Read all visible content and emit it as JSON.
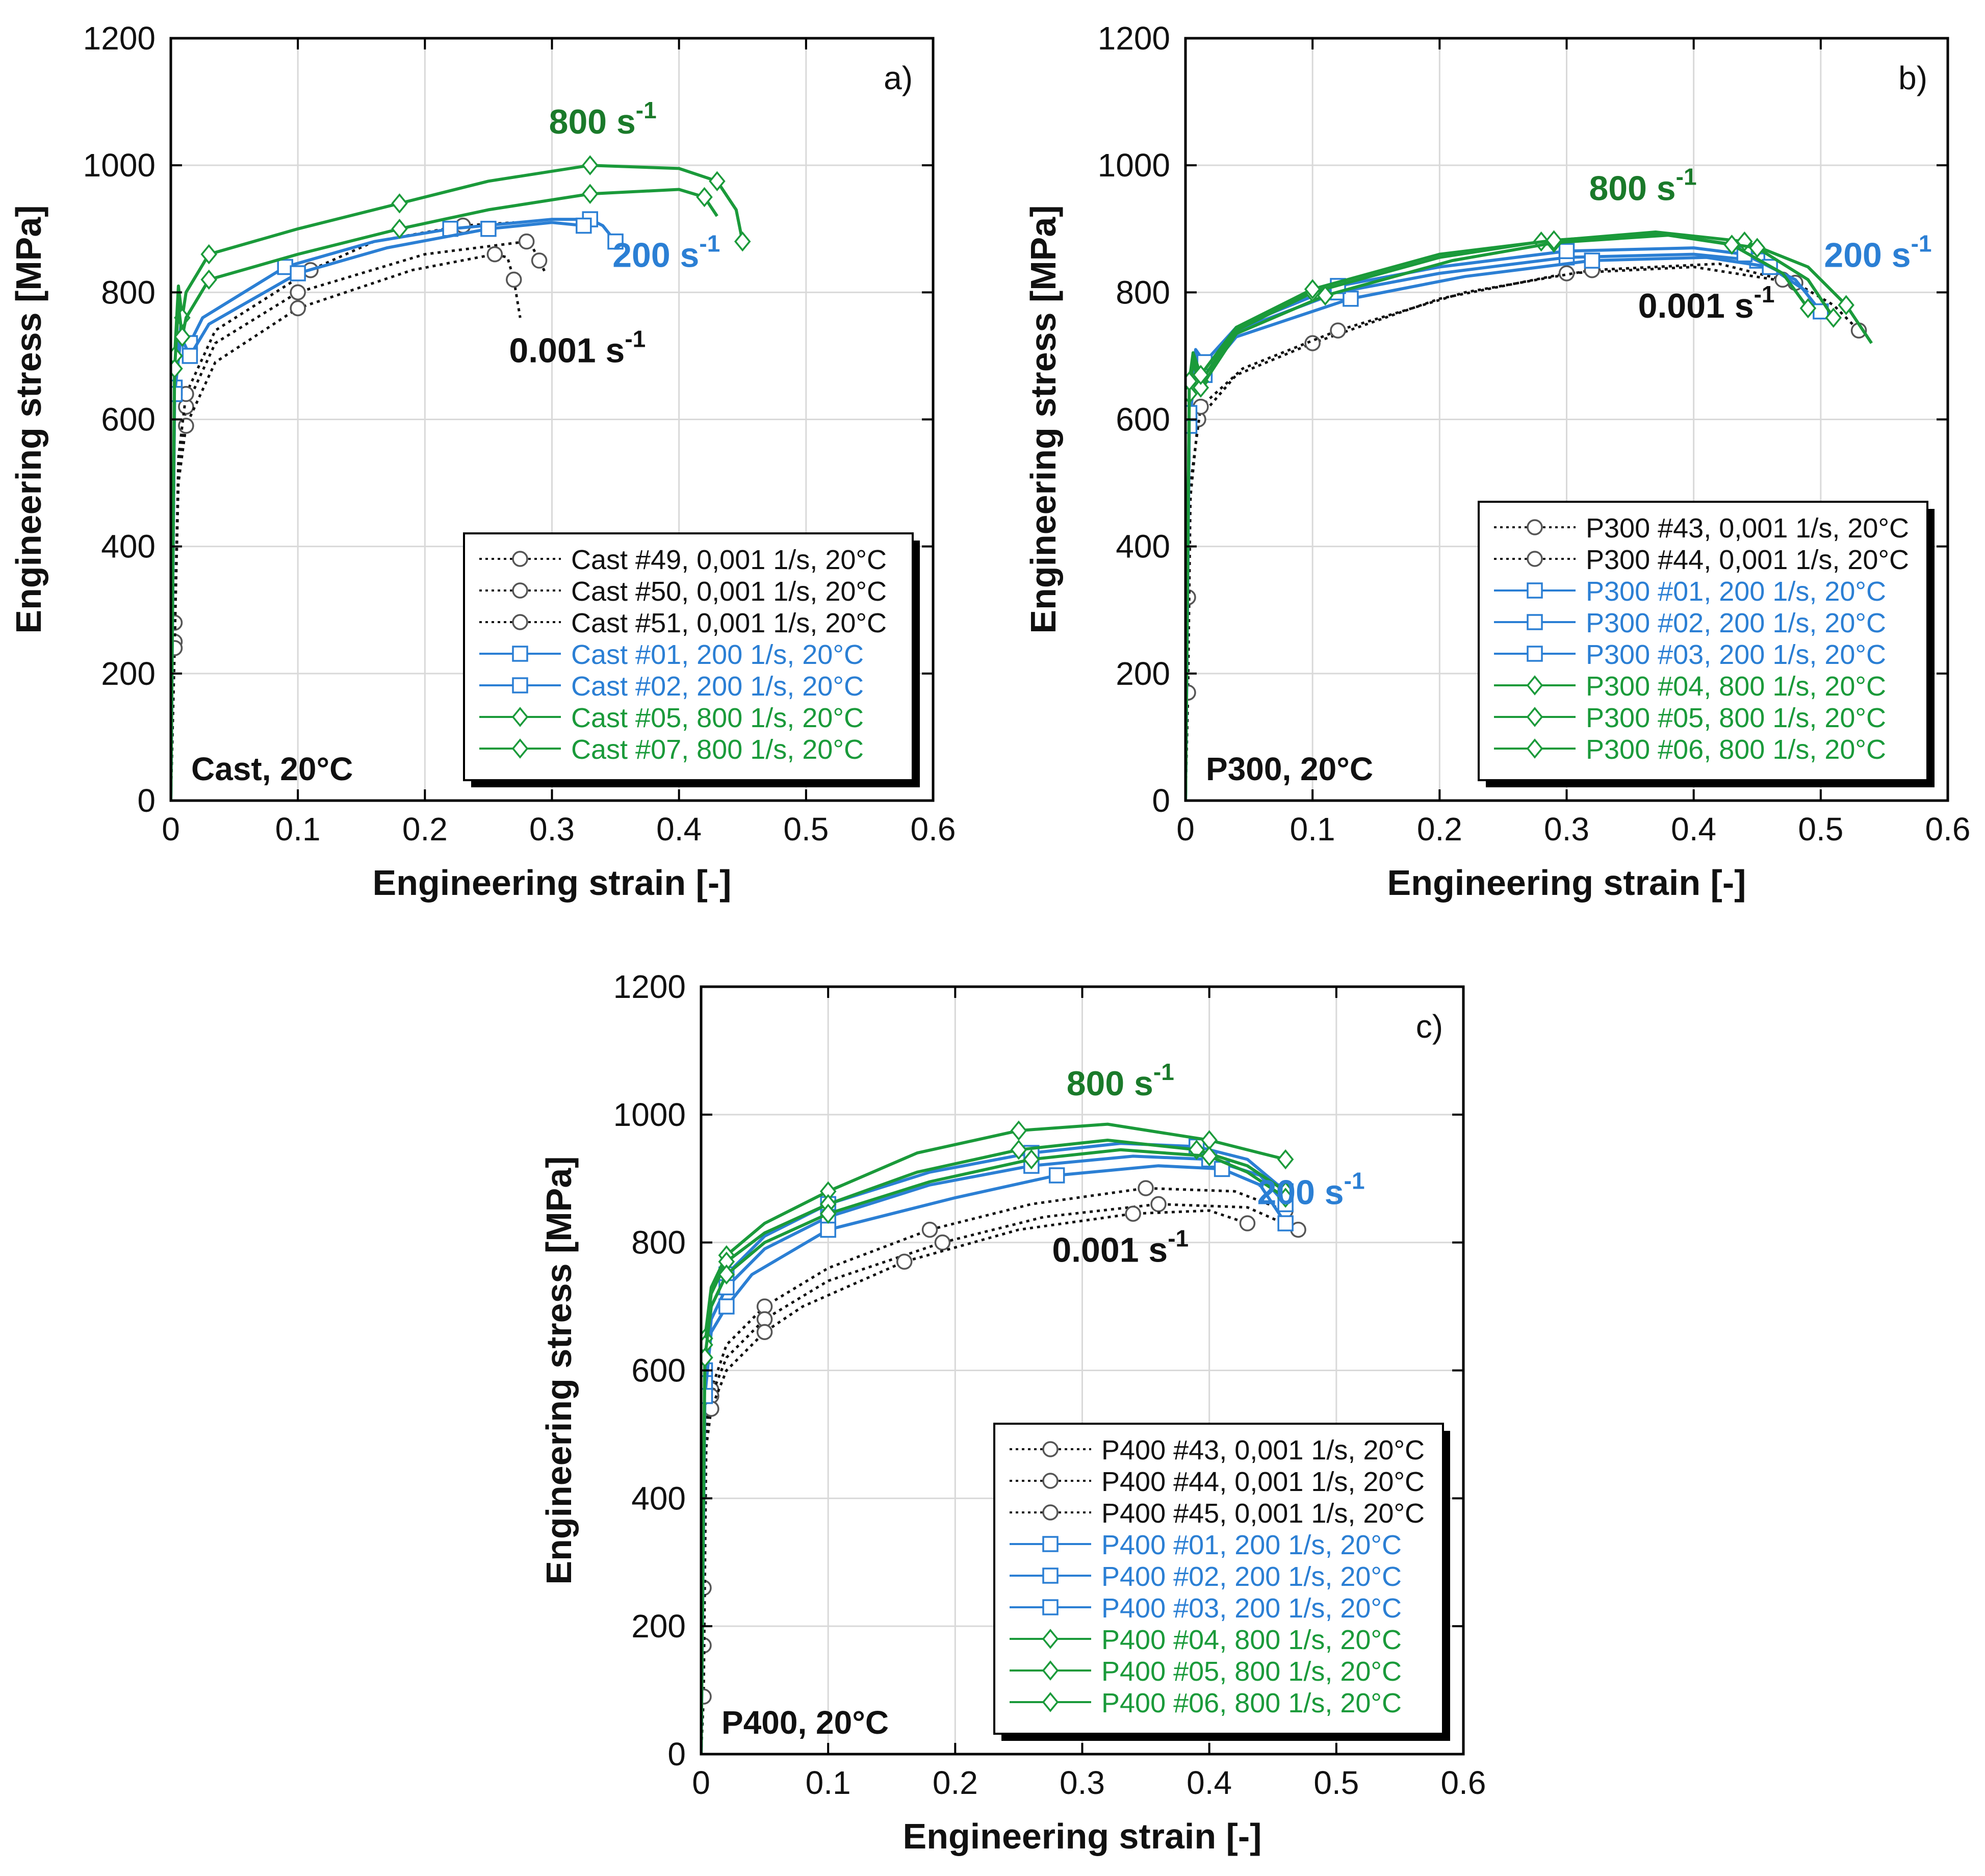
{
  "chart_data": [
    {
      "type": "line",
      "panel_label": "a)",
      "xlabel": "Engineering strain [-]",
      "ylabel": "Engineering stress [MPa]",
      "xlim": [
        0,
        0.6
      ],
      "ylim": [
        0,
        1200
      ],
      "xticks": [
        0,
        0.1,
        0.2,
        0.3,
        0.4,
        0.5,
        0.6
      ],
      "yticks": [
        0,
        200,
        400,
        600,
        800,
        1000,
        1200
      ],
      "xtick_labels": [
        "0",
        "0.1",
        "0.2",
        "0.3",
        "0.4",
        "0.5",
        "0.6"
      ],
      "ytick_labels": [
        "0",
        "200",
        "400",
        "600",
        "800",
        "1000",
        "1200"
      ],
      "grid": true,
      "condition_label": "Cast, 20°C",
      "legend_position": "bottom-right",
      "annotations": [
        {
          "text": "800 s",
          "sup": "-1",
          "color": "#1a7a2a",
          "x": 0.34,
          "y": 1050
        },
        {
          "text": "200 s",
          "sup": "-1",
          "color": "#2b7fd4",
          "x": 0.39,
          "y": 840
        },
        {
          "text": "0.001 s",
          "sup": "-1",
          "color": "#111111",
          "x": 0.32,
          "y": 690
        }
      ],
      "series": [
        {
          "name": "Cast #49, 0,001 1/s, 20°C",
          "color": "#111111",
          "dash": "dot",
          "marker": "circle",
          "x": [
            0,
            0.003,
            0.006,
            0.012,
            0.035,
            0.1,
            0.2,
            0.28,
            0.285,
            0.29,
            0.295
          ],
          "y": [
            0,
            280,
            520,
            620,
            720,
            800,
            860,
            880,
            870,
            850,
            830
          ]
        },
        {
          "name": "Cast #50, 0,001 1/s, 20°C",
          "color": "#111111",
          "dash": "dot",
          "marker": "circle",
          "x": [
            0,
            0.003,
            0.006,
            0.012,
            0.035,
            0.1,
            0.19,
            0.255,
            0.265,
            0.27,
            0.275
          ],
          "y": [
            0,
            250,
            500,
            590,
            690,
            775,
            835,
            860,
            855,
            820,
            760
          ]
        },
        {
          "name": "Cast #51, 0,001 1/s, 20°C",
          "color": "#111111",
          "dash": "dot",
          "marker": "circle",
          "x": [
            0,
            0.003,
            0.006,
            0.012,
            0.035,
            0.11,
            0.16,
            0.23,
            0.27
          ],
          "y": [
            0,
            240,
            540,
            640,
            740,
            835,
            880,
            905,
            910
          ]
        },
        {
          "name": "Cast #01, 200 1/s, 20°C",
          "color": "#2b7fd4",
          "dash": "solid",
          "marker": "square",
          "x": [
            0,
            0.003,
            0.008,
            0.015,
            0.025,
            0.09,
            0.16,
            0.22,
            0.3,
            0.33,
            0.34,
            0.35
          ],
          "y": [
            0,
            650,
            750,
            720,
            760,
            840,
            880,
            900,
            915,
            915,
            905,
            880
          ]
        },
        {
          "name": "Cast #02, 200 1/s, 20°C",
          "color": "#2b7fd4",
          "dash": "solid",
          "marker": "square",
          "x": [
            0,
            0.003,
            0.008,
            0.015,
            0.03,
            0.1,
            0.17,
            0.25,
            0.3,
            0.325
          ],
          "y": [
            0,
            640,
            730,
            700,
            750,
            830,
            870,
            900,
            910,
            905
          ]
        },
        {
          "name": "Cast #05, 800 1/s, 20°C",
          "color": "#1a9a3a",
          "dash": "solid",
          "marker": "diamond",
          "x": [
            0,
            0.003,
            0.006,
            0.009,
            0.012,
            0.03,
            0.1,
            0.18,
            0.25,
            0.33,
            0.4,
            0.43,
            0.445,
            0.45
          ],
          "y": [
            0,
            700,
            810,
            760,
            800,
            860,
            900,
            940,
            975,
            1000,
            995,
            975,
            930,
            880
          ]
        },
        {
          "name": "Cast #07, 800 1/s, 20°C",
          "color": "#1a9a3a",
          "dash": "solid",
          "marker": "diamond",
          "x": [
            0,
            0.003,
            0.006,
            0.009,
            0.012,
            0.03,
            0.1,
            0.18,
            0.25,
            0.33,
            0.4,
            0.42,
            0.43
          ],
          "y": [
            0,
            680,
            780,
            730,
            760,
            820,
            860,
            900,
            930,
            955,
            962,
            950,
            920
          ]
        }
      ]
    },
    {
      "type": "line",
      "panel_label": "b)",
      "xlabel": "Engineering strain [-]",
      "ylabel": "Engineering stress [MPa]",
      "xlim": [
        0,
        0.6
      ],
      "ylim": [
        0,
        1200
      ],
      "xticks": [
        0,
        0.1,
        0.2,
        0.3,
        0.4,
        0.5,
        0.6
      ],
      "yticks": [
        0,
        200,
        400,
        600,
        800,
        1000,
        1200
      ],
      "xtick_labels": [
        "0",
        "0.1",
        "0.2",
        "0.3",
        "0.4",
        "0.5",
        "0.6"
      ],
      "ytick_labels": [
        "0",
        "200",
        "400",
        "600",
        "800",
        "1000",
        "1200"
      ],
      "grid": true,
      "condition_label": "P300, 20°C",
      "legend_position": "bottom-right",
      "annotations": [
        {
          "text": "800 s",
          "sup": "-1",
          "color": "#1a7a2a",
          "x": 0.36,
          "y": 945
        },
        {
          "text": "200 s",
          "sup": "-1",
          "color": "#2b7fd4",
          "x": 0.545,
          "y": 840
        },
        {
          "text": "0.001 s",
          "sup": "-1",
          "color": "#111111",
          "x": 0.41,
          "y": 760
        }
      ],
      "series": [
        {
          "name": "P300 #43, 0,001 1/s, 20°C",
          "color": "#111111",
          "dash": "dot",
          "marker": "circle",
          "x": [
            0,
            0.002,
            0.004,
            0.01,
            0.04,
            0.1,
            0.2,
            0.3,
            0.4,
            0.48,
            0.51,
            0.53
          ],
          "y": [
            0,
            320,
            480,
            600,
            670,
            720,
            790,
            830,
            840,
            815,
            780,
            740
          ]
        },
        {
          "name": "P300 #44, 0,001 1/s, 20°C",
          "color": "#111111",
          "dash": "dot",
          "marker": "circle",
          "x": [
            0,
            0.002,
            0.004,
            0.012,
            0.045,
            0.12,
            0.22,
            0.32,
            0.42,
            0.47
          ],
          "y": [
            0,
            170,
            500,
            620,
            680,
            740,
            800,
            835,
            845,
            820
          ]
        },
        {
          "name": "P300 #01, 200 1/s, 20°C",
          "color": "#2b7fd4",
          "dash": "solid",
          "marker": "square",
          "x": [
            0,
            0.003,
            0.008,
            0.015,
            0.04,
            0.12,
            0.2,
            0.3,
            0.4,
            0.45,
            0.48,
            0.5
          ],
          "y": [
            0,
            600,
            700,
            680,
            740,
            800,
            830,
            855,
            860,
            850,
            820,
            770
          ]
        },
        {
          "name": "P300 #02, 200 1/s, 20°C",
          "color": "#2b7fd4",
          "dash": "solid",
          "marker": "square",
          "x": [
            0,
            0.003,
            0.008,
            0.015,
            0.04,
            0.13,
            0.22,
            0.32,
            0.41,
            0.46,
            0.49
          ],
          "y": [
            0,
            590,
            690,
            670,
            730,
            790,
            825,
            850,
            855,
            840,
            800
          ]
        },
        {
          "name": "P300 #03, 200 1/s, 20°C",
          "color": "#2b7fd4",
          "dash": "solid",
          "marker": "square",
          "x": [
            0,
            0.003,
            0.008,
            0.015,
            0.04,
            0.12,
            0.2,
            0.3,
            0.4,
            0.44,
            0.47
          ],
          "y": [
            0,
            610,
            710,
            690,
            745,
            810,
            840,
            865,
            870,
            860,
            830
          ]
        },
        {
          "name": "P300 #04, 800 1/s, 20°C",
          "color": "#1a9a3a",
          "dash": "solid",
          "marker": "diamond",
          "x": [
            0,
            0.003,
            0.006,
            0.012,
            0.04,
            0.1,
            0.2,
            0.28,
            0.37,
            0.44,
            0.49,
            0.52,
            0.54
          ],
          "y": [
            0,
            650,
            700,
            660,
            740,
            800,
            855,
            880,
            895,
            880,
            840,
            780,
            720
          ]
        },
        {
          "name": "P300 #05, 800 1/s, 20°C",
          "color": "#1a9a3a",
          "dash": "solid",
          "marker": "diamond",
          "x": [
            0,
            0.003,
            0.006,
            0.012,
            0.04,
            0.11,
            0.21,
            0.29,
            0.38,
            0.45,
            0.49,
            0.51
          ],
          "y": [
            0,
            640,
            690,
            650,
            735,
            795,
            850,
            878,
            890,
            870,
            820,
            760
          ]
        },
        {
          "name": "P300 #06, 800 1/s, 20°C",
          "color": "#1a9a3a",
          "dash": "solid",
          "marker": "diamond",
          "x": [
            0,
            0.003,
            0.006,
            0.012,
            0.04,
            0.1,
            0.2,
            0.29,
            0.37,
            0.43,
            0.47,
            0.49
          ],
          "y": [
            0,
            660,
            705,
            670,
            745,
            805,
            860,
            882,
            893,
            875,
            830,
            775
          ]
        }
      ]
    },
    {
      "type": "line",
      "panel_label": "c)",
      "xlabel": "Engineering strain [-]",
      "ylabel": "Engineering stress [MPa]",
      "xlim": [
        0,
        0.6
      ],
      "ylim": [
        0,
        1200
      ],
      "xticks": [
        0,
        0.1,
        0.2,
        0.3,
        0.4,
        0.5,
        0.6
      ],
      "yticks": [
        0,
        200,
        400,
        600,
        800,
        1000,
        1200
      ],
      "xtick_labels": [
        "0",
        "0.1",
        "0.2",
        "0.3",
        "0.4",
        "0.5",
        "0.6"
      ],
      "ytick_labels": [
        "0",
        "200",
        "400",
        "600",
        "800",
        "1000",
        "1200"
      ],
      "grid": true,
      "condition_label": "P400, 20°C",
      "legend_position": "bottom-right",
      "annotations": [
        {
          "text": "800 s",
          "sup": "-1",
          "color": "#1a7a2a",
          "x": 0.33,
          "y": 1030
        },
        {
          "text": "200 s",
          "sup": "-1",
          "color": "#2b7fd4",
          "x": 0.48,
          "y": 860
        },
        {
          "text": "0.001 s",
          "sup": "-1",
          "color": "#111111",
          "x": 0.33,
          "y": 770
        }
      ],
      "series": [
        {
          "name": "P400 #43, 0,001 1/s, 20°C",
          "color": "#111111",
          "dash": "dot",
          "marker": "circle",
          "x": [
            0,
            0.002,
            0.004,
            0.008,
            0.02,
            0.05,
            0.1,
            0.18,
            0.26,
            0.35,
            0.42,
            0.46
          ],
          "y": [
            0,
            170,
            500,
            570,
            640,
            700,
            760,
            820,
            860,
            885,
            880,
            850
          ]
        },
        {
          "name": "P400 #44, 0,001 1/s, 20°C",
          "color": "#111111",
          "dash": "dot",
          "marker": "circle",
          "x": [
            0,
            0.002,
            0.004,
            0.008,
            0.02,
            0.05,
            0.1,
            0.19,
            0.27,
            0.36,
            0.43,
            0.47
          ],
          "y": [
            0,
            260,
            520,
            560,
            620,
            680,
            740,
            800,
            840,
            860,
            855,
            820
          ]
        },
        {
          "name": "P400 #45, 0,001 1/s, 20°C",
          "color": "#111111",
          "dash": "dot",
          "marker": "circle",
          "x": [
            0,
            0.002,
            0.004,
            0.008,
            0.02,
            0.05,
            0.08,
            0.16,
            0.25,
            0.34,
            0.4,
            0.43
          ],
          "y": [
            0,
            90,
            480,
            540,
            600,
            660,
            700,
            770,
            820,
            845,
            850,
            830
          ]
        },
        {
          "name": "P400 #01, 200 1/s, 20°C",
          "color": "#2b7fd4",
          "dash": "solid",
          "marker": "square",
          "x": [
            0,
            0.003,
            0.008,
            0.02,
            0.05,
            0.1,
            0.18,
            0.26,
            0.33,
            0.39,
            0.43,
            0.46
          ],
          "y": [
            0,
            600,
            700,
            750,
            810,
            860,
            910,
            940,
            955,
            950,
            930,
            880
          ]
        },
        {
          "name": "P400 #02, 200 1/s, 20°C",
          "color": "#2b7fd4",
          "dash": "solid",
          "marker": "square",
          "x": [
            0,
            0.003,
            0.008,
            0.02,
            0.05,
            0.1,
            0.18,
            0.26,
            0.34,
            0.4,
            0.44,
            0.46
          ],
          "y": [
            0,
            580,
            680,
            730,
            790,
            840,
            890,
            920,
            935,
            930,
            905,
            860
          ]
        },
        {
          "name": "P400 #03, 200 1/s, 20°C",
          "color": "#2b7fd4",
          "dash": "solid",
          "marker": "square",
          "x": [
            0,
            0.003,
            0.008,
            0.02,
            0.04,
            0.1,
            0.2,
            0.28,
            0.36,
            0.41,
            0.44,
            0.46
          ],
          "y": [
            0,
            560,
            660,
            700,
            750,
            820,
            870,
            905,
            920,
            915,
            890,
            830
          ]
        },
        {
          "name": "P400 #04, 800 1/s, 20°C",
          "color": "#1a9a3a",
          "dash": "solid",
          "marker": "diamond",
          "x": [
            0,
            0.003,
            0.008,
            0.02,
            0.05,
            0.1,
            0.17,
            0.25,
            0.32,
            0.4,
            0.44,
            0.46
          ],
          "y": [
            0,
            650,
            730,
            780,
            830,
            880,
            940,
            975,
            985,
            960,
            940,
            930
          ]
        },
        {
          "name": "P400 #05, 800 1/s, 20°C",
          "color": "#1a9a3a",
          "dash": "solid",
          "marker": "diamond",
          "x": [
            0,
            0.003,
            0.008,
            0.02,
            0.05,
            0.1,
            0.17,
            0.25,
            0.32,
            0.39,
            0.43,
            0.46
          ],
          "y": [
            0,
            640,
            720,
            770,
            815,
            860,
            910,
            945,
            960,
            945,
            920,
            880
          ]
        },
        {
          "name": "P400 #06, 800 1/s, 20°C",
          "color": "#1a9a3a",
          "dash": "solid",
          "marker": "diamond",
          "x": [
            0,
            0.003,
            0.008,
            0.02,
            0.05,
            0.1,
            0.18,
            0.26,
            0.33,
            0.4,
            0.43,
            0.46
          ],
          "y": [
            0,
            620,
            700,
            750,
            800,
            845,
            895,
            930,
            945,
            935,
            910,
            870
          ]
        }
      ]
    }
  ]
}
